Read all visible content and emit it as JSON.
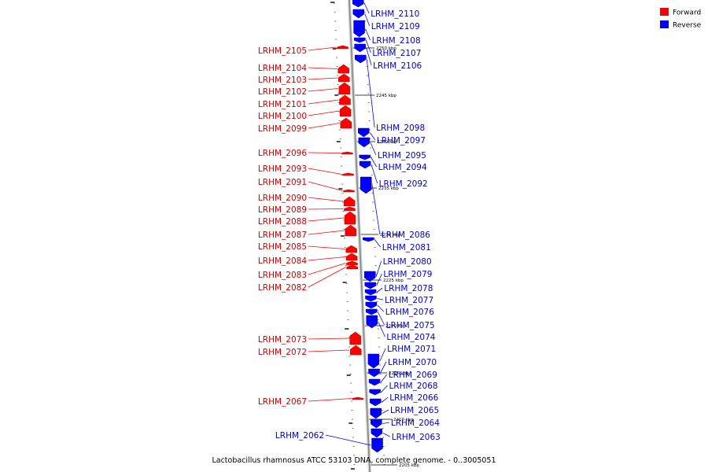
{
  "caption": "Lactobacillus rhamnosus ATCC 53103 DNA, complete genome. - 0..3005051",
  "legend": [
    {
      "label": "Forward",
      "color": "#ff0000"
    },
    {
      "label": "Reverse",
      "color": "#0000ff"
    }
  ],
  "scale_labels": [
    "2250 kbp",
    "2245 kbp",
    "2240 kbp",
    "2235 kbp",
    "2230 kbp",
    "2225 kbp",
    "2220 kbp",
    "2215 kbp",
    "2210 kbp",
    "2205 kbp"
  ],
  "forward_genes": [
    "LRHM_2105",
    "LRHM_2104",
    "LRHM_2103",
    "LRHM_2102",
    "LRHM_2101",
    "LRHM_2100",
    "LRHM_2099",
    "LRHM_2096",
    "LRHM_2093",
    "LRHM_2091",
    "LRHM_2090",
    "LRHM_2089",
    "LRHM_2088",
    "LRHM_2087",
    "LRHM_2085",
    "LRHM_2084",
    "LRHM_2083",
    "LRHM_2082",
    "LRHM_2073",
    "LRHM_2072",
    "LRHM_2067"
  ],
  "reverse_genes": [
    "LRHM_2110",
    "LRHM_2109",
    "LRHM_2108",
    "LRHM_2107",
    "LRHM_2106",
    "LRHM_2098",
    "LRHM_2097",
    "LRHM_2095",
    "LRHM_2094",
    "LRHM_2092",
    "LRHM_2086",
    "LRHM_2081",
    "LRHM_2080",
    "LRHM_2079",
    "LRHM_2078",
    "LRHM_2077",
    "LRHM_2076",
    "LRHM_2075",
    "LRHM_2074",
    "LRHM_2071",
    "LRHM_2070",
    "LRHM_2069",
    "LRHM_2068",
    "LRHM_2066",
    "LRHM_2065",
    "LRHM_2064",
    "LRHM_2063",
    "LRHM_2062"
  ]
}
